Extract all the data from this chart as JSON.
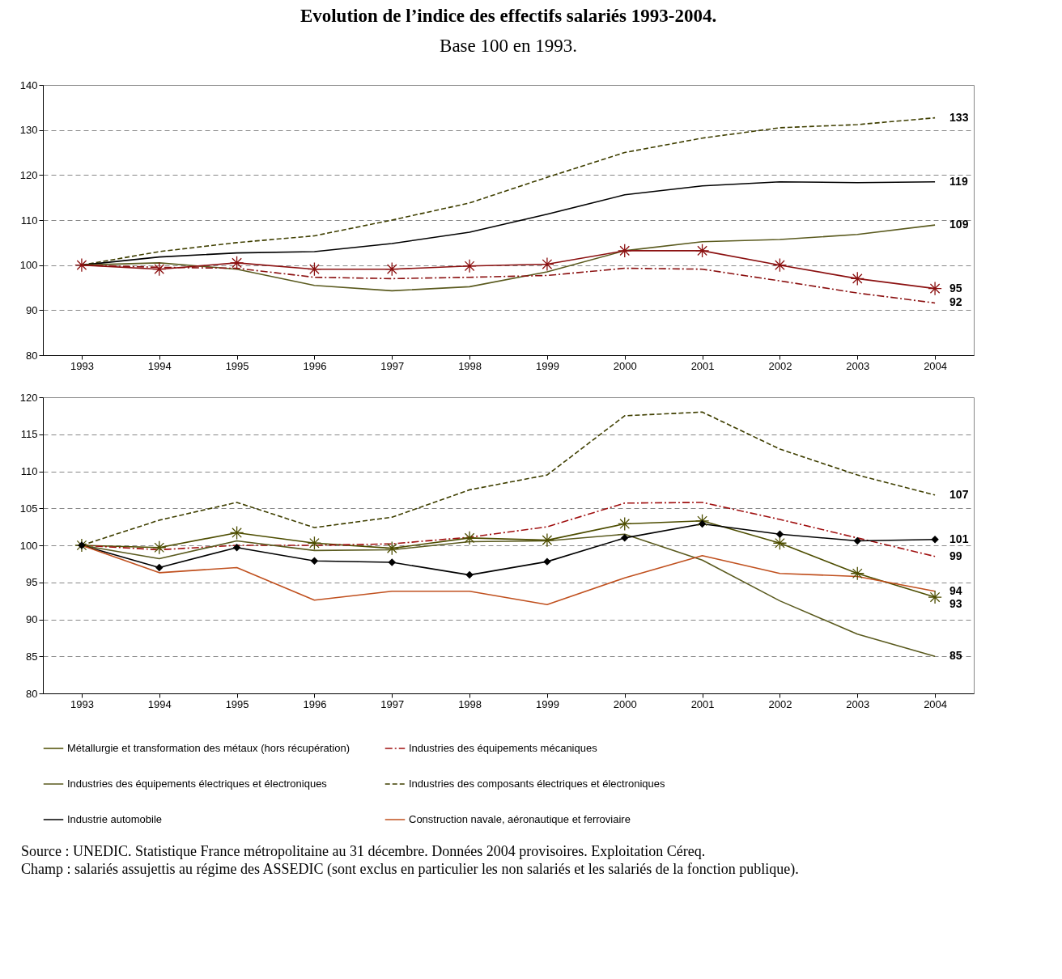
{
  "chart_data": [
    {
      "type": "line",
      "title": "Evolution de l’indice des effectifs salariés 1993-2004.",
      "subtitle": "Base 100 en 1993.",
      "categories": [
        "1993",
        "1994",
        "1995",
        "1996",
        "1997",
        "1998",
        "1999",
        "2000",
        "2001",
        "2002",
        "2003",
        "2004"
      ],
      "ylim": [
        80,
        140
      ],
      "yticks": [
        80,
        90,
        100,
        110,
        120,
        130,
        140
      ],
      "grid": "y",
      "legend": false,
      "series": [
        {
          "color": "#3f3f00",
          "line_style": "dashed",
          "marker": "none",
          "values": [
            100,
            103,
            105,
            106.5,
            110,
            113.8,
            119.5,
            125,
            128.2,
            130.5,
            131.2,
            132.7
          ],
          "value_labels": [
            null,
            null,
            null,
            null,
            null,
            null,
            null,
            null,
            null,
            null,
            null,
            "133"
          ]
        },
        {
          "color": "#000000",
          "line_style": "solid",
          "marker": "none",
          "values": [
            100,
            101.8,
            102.7,
            103,
            104.8,
            107.3,
            111.3,
            115.6,
            117.6,
            118.5,
            118.3,
            118.5
          ],
          "value_labels": [
            null,
            null,
            null,
            null,
            null,
            null,
            null,
            null,
            null,
            null,
            null,
            "119"
          ]
        },
        {
          "color": "#5a5a1e",
          "line_style": "solid",
          "marker": "none",
          "values": [
            100,
            100.5,
            99.1,
            95.5,
            94.3,
            95.2,
            98.5,
            103.2,
            105.2,
            105.7,
            106.8,
            108.9
          ],
          "value_labels": [
            null,
            null,
            null,
            null,
            null,
            null,
            null,
            null,
            null,
            null,
            null,
            "109"
          ]
        },
        {
          "color": "#8b1010",
          "line_style": "solid",
          "marker": "cross",
          "values": [
            100,
            99.1,
            100.5,
            99.1,
            99.1,
            99.8,
            100.2,
            103.2,
            103.2,
            100,
            97,
            94.8
          ],
          "value_labels": [
            null,
            null,
            null,
            null,
            null,
            null,
            null,
            null,
            null,
            null,
            null,
            "95"
          ]
        },
        {
          "color": "#8b1010",
          "line_style": "dashdot",
          "marker": "none",
          "values": [
            100,
            99.5,
            99.3,
            97.3,
            97,
            97.3,
            97.7,
            99.3,
            99.1,
            96.5,
            93.8,
            91.6
          ],
          "value_labels": [
            null,
            null,
            null,
            null,
            null,
            null,
            null,
            null,
            null,
            null,
            null,
            "92"
          ]
        }
      ]
    },
    {
      "type": "line",
      "categories": [
        "1993",
        "1994",
        "1995",
        "1996",
        "1997",
        "1998",
        "1999",
        "2000",
        "2001",
        "2002",
        "2003",
        "2004"
      ],
      "ylim": [
        80,
        120
      ],
      "yticks": [
        80,
        85,
        90,
        95,
        100,
        105,
        110,
        115,
        120
      ],
      "grid": "y",
      "legend": "bottom",
      "series": [
        {
          "name": "Métallurgie et transformation des métaux (hors récupération)",
          "color": "#4d4d00",
          "line_style": "solid",
          "marker": "cross",
          "values": [
            100,
            99.7,
            101.7,
            100.3,
            99.6,
            101,
            100.7,
            102.9,
            103.3,
            100.3,
            96.2,
            93
          ],
          "value_labels": [
            null,
            null,
            null,
            null,
            null,
            null,
            null,
            null,
            null,
            null,
            null,
            "93"
          ]
        },
        {
          "name": "Industries des équipements mécaniques",
          "color": "#a01010",
          "line_style": "dashdot",
          "marker": "none",
          "values": [
            100,
            99.4,
            100,
            100,
            100.2,
            101.1,
            102.5,
            105.7,
            105.8,
            103.5,
            101,
            98.5
          ],
          "value_labels": [
            null,
            null,
            null,
            null,
            null,
            null,
            null,
            null,
            null,
            null,
            null,
            "99"
          ]
        },
        {
          "name": "Industries des équipements électriques et électroniques",
          "color": "#5a5a1e",
          "line_style": "solid",
          "marker": "none",
          "values": [
            100,
            98.2,
            100.6,
            99.3,
            99.4,
            100.5,
            100.6,
            101.5,
            98,
            92.5,
            88,
            85
          ],
          "value_labels": [
            null,
            null,
            null,
            null,
            null,
            null,
            null,
            null,
            null,
            null,
            null,
            "85"
          ]
        },
        {
          "name": "Industries des composants électriques et électroniques",
          "color": "#3f3f00",
          "line_style": "dashed",
          "marker": "none",
          "values": [
            100,
            103.4,
            105.8,
            102.4,
            103.8,
            107.5,
            109.5,
            117.5,
            118,
            113,
            109.5,
            106.8
          ],
          "value_labels": [
            null,
            null,
            null,
            null,
            null,
            null,
            null,
            null,
            null,
            null,
            null,
            "107"
          ]
        },
        {
          "name": "Industrie automobile",
          "color": "#000000",
          "line_style": "solid",
          "marker": "diamond",
          "values": [
            100,
            97,
            99.7,
            97.9,
            97.7,
            96,
            97.8,
            101,
            102.9,
            101.5,
            100.6,
            100.8
          ],
          "value_labels": [
            null,
            null,
            null,
            null,
            null,
            null,
            null,
            null,
            null,
            null,
            null,
            "101"
          ]
        },
        {
          "name": "Construction navale, aéronautique et ferroviaire",
          "color": "#c0501e",
          "line_style": "solid",
          "marker": "none",
          "values": [
            100,
            96.3,
            97,
            92.6,
            93.8,
            93.8,
            92,
            95.6,
            98.6,
            96.2,
            95.8,
            93.8
          ],
          "value_labels": [
            null,
            null,
            null,
            null,
            null,
            null,
            null,
            null,
            null,
            null,
            null,
            "94"
          ]
        }
      ],
      "annotations": [
        "Source : UNEDIC. Statistique France métropolitaine au 31 décembre. Données 2004 provisoires. Exploitation Céreq.",
        "Champ : salariés assujettis au régime des ASSEDIC (sont exclus en particulier les non salariés et les salariés de la fonction publique)."
      ]
    }
  ]
}
